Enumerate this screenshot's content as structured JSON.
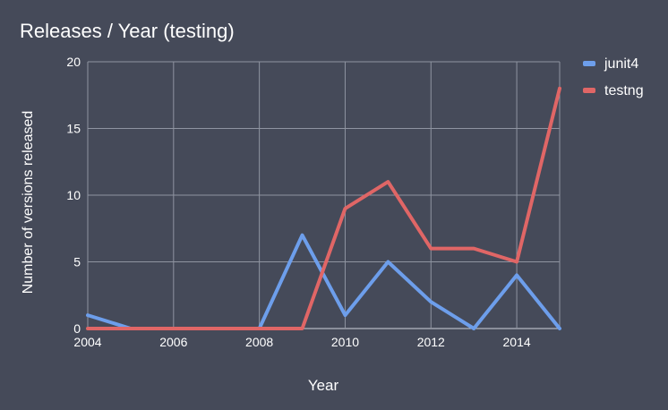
{
  "chart_data": {
    "type": "line",
    "title": "Releases / Year (testing)",
    "xlabel": "Year",
    "ylabel": "Number of versions released",
    "x": [
      2004,
      2005,
      2006,
      2007,
      2008,
      2009,
      2010,
      2011,
      2012,
      2013,
      2014,
      2015
    ],
    "xlim": [
      2004,
      2015
    ],
    "ylim": [
      0,
      20
    ],
    "x_ticks": [
      "2004",
      "2006",
      "2008",
      "2010",
      "2012",
      "2014"
    ],
    "y_ticks": [
      "0",
      "5",
      "10",
      "15",
      "20"
    ],
    "grid": true,
    "legend_position": "right",
    "series": [
      {
        "name": "junit4",
        "color": "#6d9eeb",
        "values": [
          1,
          0,
          0,
          0,
          0,
          7,
          1,
          5,
          2,
          0,
          4,
          0
        ]
      },
      {
        "name": "testng",
        "color": "#e06666",
        "values": [
          0,
          0,
          0,
          0,
          0,
          0,
          9,
          11,
          6,
          6,
          5,
          18
        ]
      }
    ]
  }
}
